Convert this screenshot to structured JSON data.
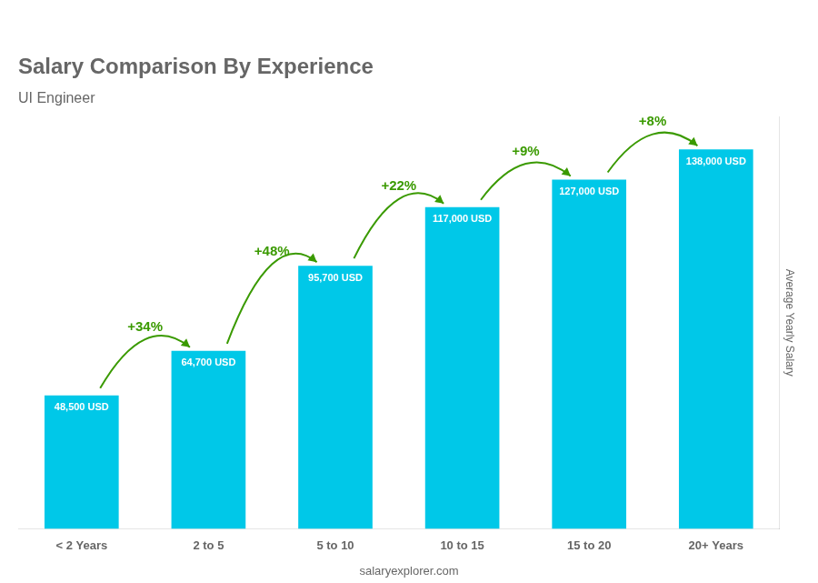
{
  "chart_data": {
    "type": "bar",
    "title": "Salary Comparison By Experience",
    "subtitle": "UI Engineer",
    "ylabel": "Average Yearly Salary",
    "categories": [
      "< 2 Years",
      "2 to 5",
      "5 to 10",
      "10 to 15",
      "15 to 20",
      "20+ Years"
    ],
    "values": [
      48500,
      64700,
      95700,
      117000,
      127000,
      138000
    ],
    "value_labels": [
      "48,500 USD",
      "64,700 USD",
      "95,700 USD",
      "117,000 USD",
      "127,000 USD",
      "138,000 USD"
    ],
    "data_labels": true,
    "color": "#00c8e8",
    "ylim": [
      0,
      150000
    ],
    "grid": false,
    "tick_labels": "x",
    "annotations": [
      "+34%",
      "+48%",
      "+22%",
      "+9%",
      "+8%"
    ],
    "footer": "salaryexplorer.com"
  }
}
